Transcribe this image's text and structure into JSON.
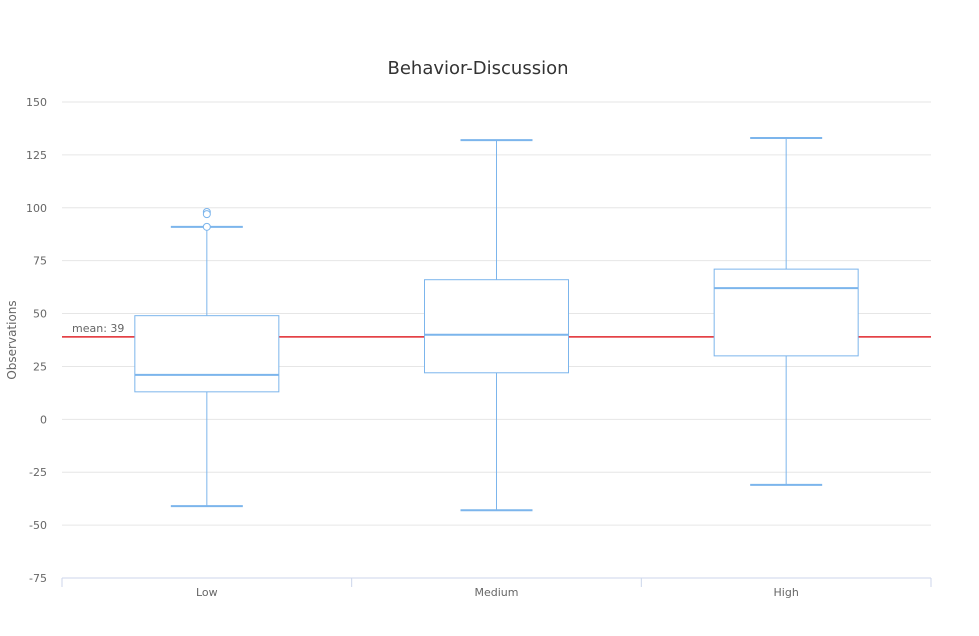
{
  "chart_data": {
    "type": "boxplot",
    "title": "Behavior-Discussion",
    "xlabel": "",
    "ylabel": "Observations",
    "categories": [
      "Low",
      "Medium",
      "High"
    ],
    "ylim": [
      -75,
      150
    ],
    "yticks": [
      150,
      125,
      100,
      75,
      50,
      25,
      0,
      -25,
      -50,
      -75
    ],
    "grid": true,
    "boxes": [
      {
        "category": "Low",
        "low": -41,
        "q1": 13,
        "median": 21,
        "q3": 49,
        "high": 91
      },
      {
        "category": "Medium",
        "low": -43,
        "q1": 22,
        "median": 40,
        "q3": 66,
        "high": 132
      },
      {
        "category": "High",
        "low": -31,
        "q1": 30,
        "median": 62,
        "q3": 71,
        "high": 133
      }
    ],
    "outliers": [
      {
        "category": "Low",
        "values": [
          98,
          97,
          91
        ]
      }
    ],
    "plot_line": {
      "value": 39,
      "label": "mean: 39",
      "color": "#e0262b"
    },
    "colors": {
      "box": "#7cb5ec",
      "grid": "#e6e6e6",
      "text": "#666666",
      "axis": "#ccd6eb"
    }
  }
}
